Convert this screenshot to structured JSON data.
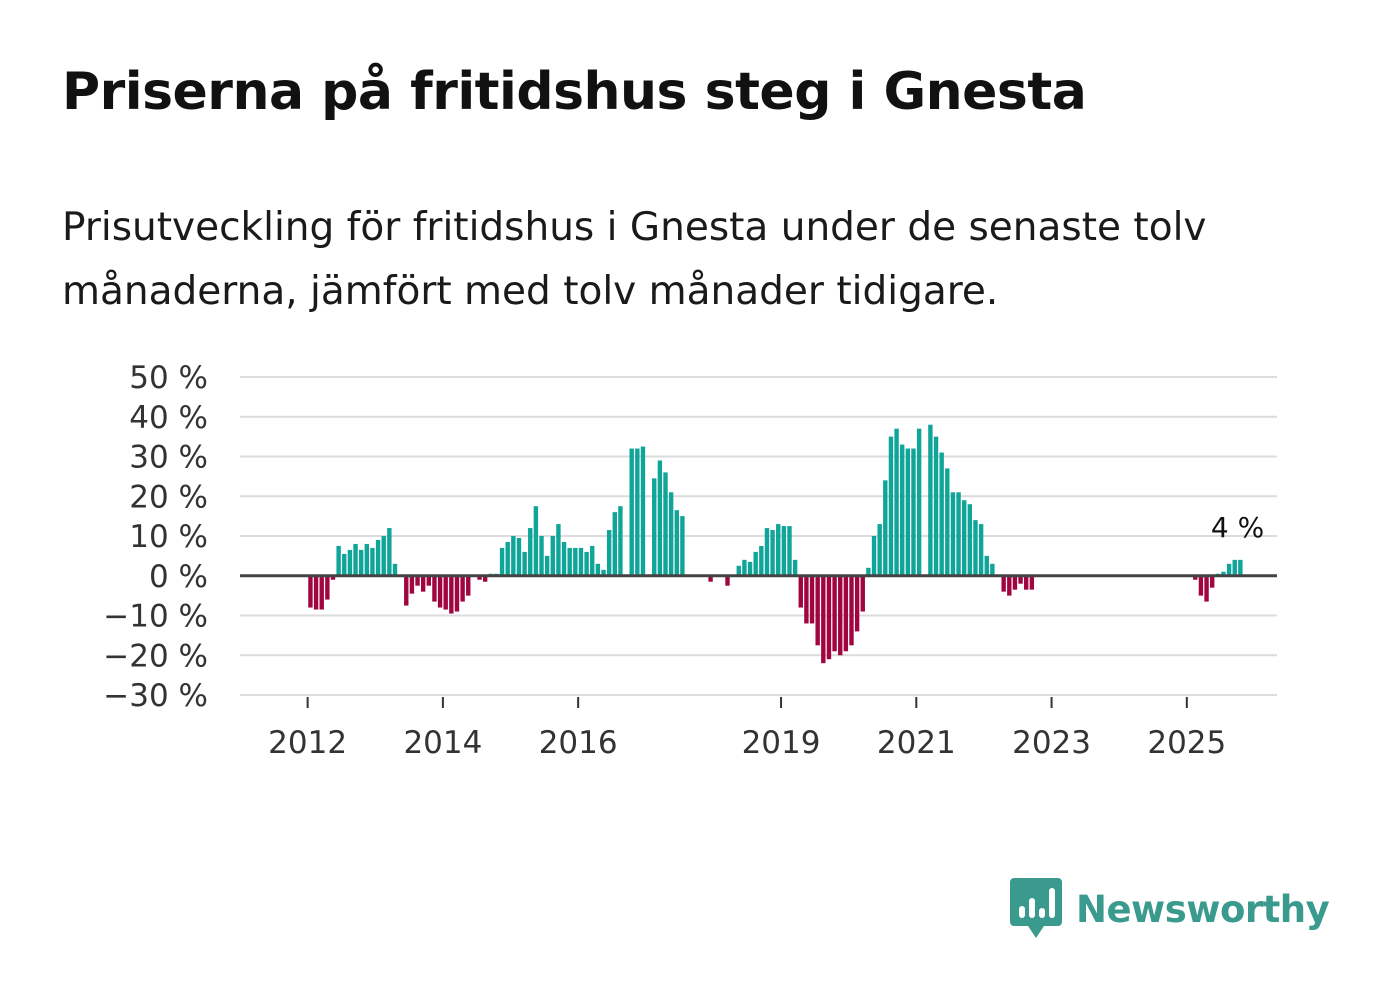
{
  "title": "Priserna på fritidshus steg i Gnesta",
  "subtitle": "Prisutveckling för fritidshus i Gnesta under de senaste tolv månaderna, jämfört med tolv månader tidigare.",
  "brand": {
    "name": "Newsworthy",
    "color": "#3a9a8e"
  },
  "colors": {
    "positive": "#0fa599",
    "negative": "#a10540",
    "grid": "#dcdcdc",
    "zero": "#444444"
  },
  "chart_data": {
    "type": "bar",
    "title": "Priserna på fritidshus steg i Gnesta",
    "xlabel": "",
    "ylabel": "",
    "ylim": [
      -30,
      50
    ],
    "yticks": [
      50,
      40,
      30,
      20,
      10,
      0,
      -10,
      -20,
      -30
    ],
    "ytick_labels": [
      "50 %",
      "40 %",
      "30 %",
      "20 %",
      "10 %",
      "0 %",
      "−10 %",
      "−20 %",
      "−30 %"
    ],
    "xticks": [
      {
        "label": "2012",
        "year": 2012
      },
      {
        "label": "2014",
        "year": 2014
      },
      {
        "label": "2016",
        "year": 2016
      },
      {
        "label": "2019",
        "year": 2019
      },
      {
        "label": "2021",
        "year": 2021
      },
      {
        "label": "2023",
        "year": 2023
      },
      {
        "label": "2025",
        "year": 2025
      }
    ],
    "start": {
      "year": 2011,
      "month": 1
    },
    "values": [
      null,
      null,
      null,
      null,
      null,
      null,
      null,
      null,
      null,
      null,
      null,
      null,
      -8,
      -8.5,
      -8.5,
      -6,
      -1,
      7.5,
      5.5,
      6.5,
      8,
      6.5,
      8,
      7,
      9,
      10,
      12,
      3,
      0,
      -7.5,
      -4.5,
      -2.5,
      -4,
      -2.5,
      -6.5,
      -8,
      -8.5,
      -9.5,
      -9,
      -6.5,
      -5,
      0,
      -1,
      -1.5,
      0.5,
      0.5,
      7,
      8.5,
      10,
      9.5,
      6,
      12,
      17.5,
      10,
      5,
      10,
      13,
      8.5,
      7,
      7,
      7,
      6,
      7.5,
      3,
      1.5,
      11.5,
      16,
      17.5,
      0,
      32,
      32,
      32.5,
      0,
      24.5,
      29,
      26,
      21,
      16.5,
      15,
      0,
      0,
      0,
      0,
      -1.5,
      0,
      0,
      -2.5,
      0,
      2.5,
      4,
      3.5,
      6,
      7.5,
      12,
      11.5,
      13,
      12.5,
      12.5,
      4,
      -8,
      -12,
      -12,
      -17.5,
      -22,
      -21,
      -19,
      -20,
      -19,
      -17.5,
      -14,
      -9,
      2,
      10,
      13,
      24,
      35,
      37,
      33,
      32,
      32,
      37,
      0,
      38,
      35,
      31,
      27,
      21,
      21,
      19,
      18,
      14,
      13,
      5,
      3,
      0,
      -4,
      -5,
      -3.5,
      -2,
      -3.5,
      -3.5,
      0,
      0,
      0,
      0,
      0,
      0,
      0,
      0,
      0,
      0,
      0,
      0,
      0,
      0,
      0,
      0,
      0,
      0,
      0,
      0,
      0,
      0,
      0,
      0,
      0,
      0,
      0,
      0,
      -1,
      -5,
      -6.5,
      -3,
      0.5,
      1,
      3,
      4,
      4
    ],
    "annotation": {
      "text": "4 %",
      "value": 4
    }
  }
}
